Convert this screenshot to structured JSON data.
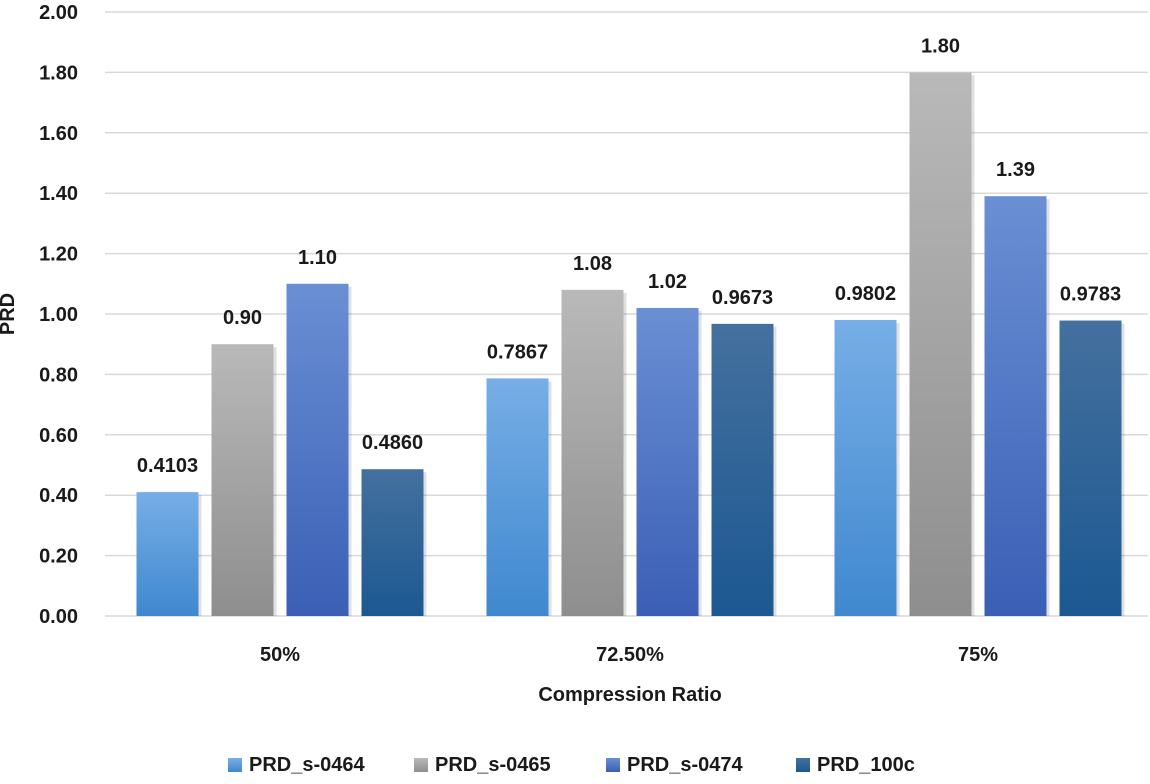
{
  "chart_data": {
    "type": "bar",
    "title": "",
    "xlabel": "Compression Ratio",
    "ylabel": "PRD",
    "ylim": [
      0,
      2
    ],
    "yticks": [
      "0.00",
      "0.20",
      "0.40",
      "0.60",
      "0.80",
      "1.00",
      "1.20",
      "1.40",
      "1.60",
      "1.80",
      "2.00"
    ],
    "grid": true,
    "legend_position": "bottom",
    "categories": [
      "50%",
      "72.50%",
      "75%"
    ],
    "series": [
      {
        "name": "PRD_s-0464",
        "color_top": "#77aee6",
        "color_bottom": "#3f88cf",
        "values": [
          0.4103,
          0.7867,
          0.9802
        ],
        "labels": [
          "0.4103",
          "0.7867",
          "0.9802"
        ]
      },
      {
        "name": "PRD_s-0465",
        "color_top": "#b9b9b9",
        "color_bottom": "#8e8e8e",
        "values": [
          0.9,
          1.08,
          1.8
        ],
        "labels": [
          "0.90",
          "1.08",
          "1.80"
        ]
      },
      {
        "name": "PRD_s-0474",
        "color_top": "#6a8fd4",
        "color_bottom": "#3a5fb5",
        "values": [
          1.1,
          1.02,
          1.39
        ],
        "labels": [
          "1.10",
          "1.02",
          "1.39"
        ]
      },
      {
        "name": "PRD_100c",
        "color_top": "#44709e",
        "color_bottom": "#1c5892",
        "values": [
          0.486,
          0.9673,
          0.9783
        ],
        "labels": [
          "0.4860",
          "0.9673",
          "0.9783"
        ]
      }
    ]
  }
}
